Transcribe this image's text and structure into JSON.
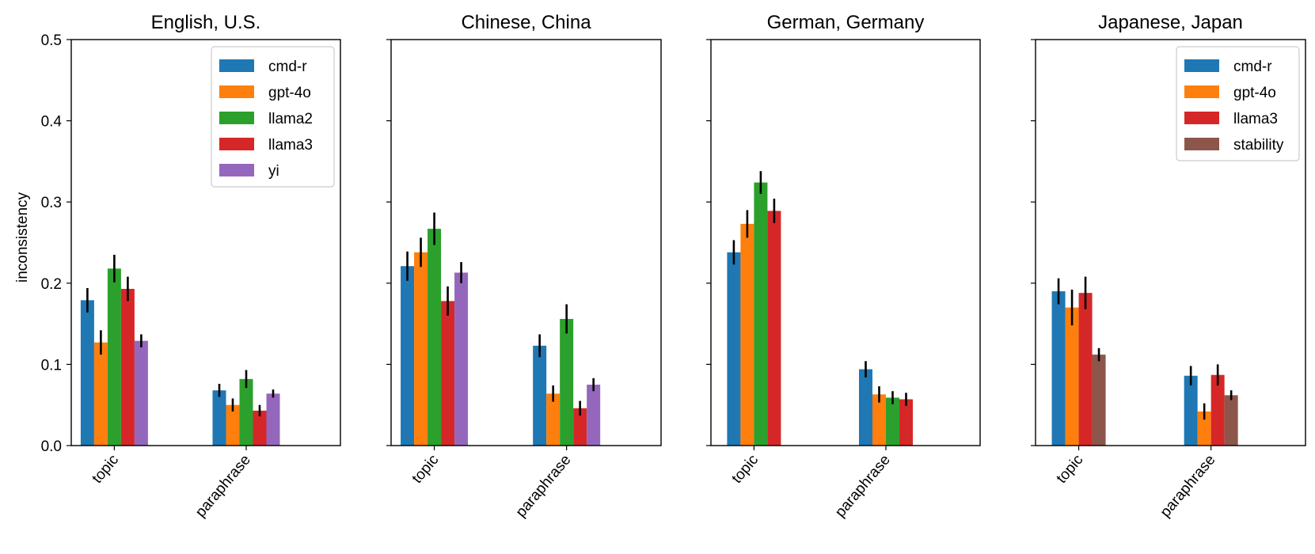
{
  "colors": {
    "cmd-r": "#1f77b4",
    "gpt-4o": "#ff7f0e",
    "llama2": "#2ca02c",
    "llama3": "#d62728",
    "yi": "#9467bd",
    "stability": "#8c564b"
  },
  "shared_ylabel": "inconsistency",
  "y_ticks": [
    "0.0",
    "0.1",
    "0.2",
    "0.3",
    "0.4",
    "0.5"
  ],
  "chart_data": [
    {
      "type": "bar",
      "title": "English, U.S.",
      "categories": [
        "topic",
        "paraphrase"
      ],
      "ylabel": "inconsistency",
      "ylim": [
        0,
        0.5
      ],
      "legend": "top-right",
      "series": [
        {
          "name": "cmd-r",
          "values": [
            0.179,
            0.068
          ],
          "err": [
            0.015,
            0.008
          ]
        },
        {
          "name": "gpt-4o",
          "values": [
            0.127,
            0.05
          ],
          "err": [
            0.015,
            0.008
          ]
        },
        {
          "name": "llama2",
          "values": [
            0.218,
            0.082
          ],
          "err": [
            0.017,
            0.011
          ]
        },
        {
          "name": "llama3",
          "values": [
            0.193,
            0.043
          ],
          "err": [
            0.015,
            0.007
          ]
        },
        {
          "name": "yi",
          "values": [
            0.129,
            0.064
          ],
          "err": [
            0.008,
            0.005
          ]
        }
      ]
    },
    {
      "type": "bar",
      "title": "Chinese, China",
      "categories": [
        "topic",
        "paraphrase"
      ],
      "ylim": [
        0,
        0.5
      ],
      "series": [
        {
          "name": "cmd-r",
          "values": [
            0.221,
            0.123
          ],
          "err": [
            0.018,
            0.014
          ]
        },
        {
          "name": "gpt-4o",
          "values": [
            0.238,
            0.064
          ],
          "err": [
            0.018,
            0.01
          ]
        },
        {
          "name": "llama2",
          "values": [
            0.267,
            0.156
          ],
          "err": [
            0.02,
            0.018
          ]
        },
        {
          "name": "llama3",
          "values": [
            0.178,
            0.046
          ],
          "err": [
            0.018,
            0.009
          ]
        },
        {
          "name": "yi",
          "values": [
            0.213,
            0.075
          ],
          "err": [
            0.013,
            0.008
          ]
        }
      ]
    },
    {
      "type": "bar",
      "title": "German, Germany",
      "categories": [
        "topic",
        "paraphrase"
      ],
      "ylim": [
        0,
        0.5
      ],
      "series": [
        {
          "name": "cmd-r",
          "values": [
            0.238,
            0.094
          ],
          "err": [
            0.015,
            0.01
          ]
        },
        {
          "name": "gpt-4o",
          "values": [
            0.273,
            0.063
          ],
          "err": [
            0.017,
            0.01
          ]
        },
        {
          "name": "llama2",
          "values": [
            0.324,
            0.059
          ],
          "err": [
            0.014,
            0.008
          ]
        },
        {
          "name": "llama3",
          "values": [
            0.289,
            0.057
          ],
          "err": [
            0.015,
            0.008
          ]
        }
      ]
    },
    {
      "type": "bar",
      "title": "Japanese, Japan",
      "categories": [
        "topic",
        "paraphrase"
      ],
      "ylim": [
        0,
        0.5
      ],
      "legend": "top-right",
      "series": [
        {
          "name": "cmd-r",
          "values": [
            0.19,
            0.086
          ],
          "err": [
            0.016,
            0.012
          ]
        },
        {
          "name": "gpt-4o",
          "values": [
            0.17,
            0.042
          ],
          "err": [
            0.022,
            0.01
          ]
        },
        {
          "name": "llama3",
          "values": [
            0.188,
            0.087
          ],
          "err": [
            0.02,
            0.013
          ]
        },
        {
          "name": "stability",
          "values": [
            0.112,
            0.062
          ],
          "err": [
            0.008,
            0.006
          ]
        }
      ]
    }
  ]
}
